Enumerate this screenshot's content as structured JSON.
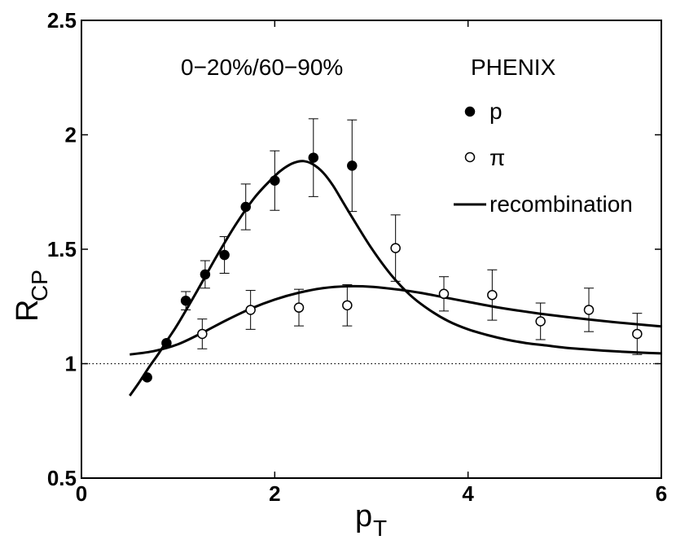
{
  "chart_data": {
    "type": "scatter",
    "title": "",
    "annotation": "0−20%/60−90%",
    "xlabel": {
      "main": "p",
      "sub": "T"
    },
    "ylabel": {
      "main": "R",
      "sub": "CP"
    },
    "xlim": [
      0,
      6
    ],
    "ylim": [
      0.5,
      2.5
    ],
    "xticks": [
      0,
      2,
      4,
      6
    ],
    "xtick_labels": [
      "0",
      "2",
      "4",
      "6"
    ],
    "yticks": [
      0.5,
      1,
      1.5,
      2,
      2.5
    ],
    "ytick_labels": [
      "0.5",
      "1",
      "1.5",
      "2",
      "2.5"
    ],
    "reference_line": {
      "y": 1,
      "style": "dotted"
    },
    "legend": {
      "title": "PHENIX",
      "position": "top-right",
      "entries": [
        {
          "label": "p",
          "marker": "filled-circle"
        },
        {
          "label": "π",
          "marker": "open-circle"
        },
        {
          "label": "recombination",
          "marker": "line"
        }
      ]
    },
    "series": [
      {
        "name": "p",
        "marker": "filled-circle",
        "x": [
          0.68,
          0.88,
          1.08,
          1.28,
          1.48,
          1.7,
          2.0,
          2.4,
          2.8
        ],
        "y": [
          0.94,
          1.09,
          1.275,
          1.39,
          1.475,
          1.685,
          1.8,
          1.9,
          1.865
        ],
        "err": [
          0,
          0,
          0.04,
          0.06,
          0.08,
          0.1,
          0.13,
          0.17,
          0.2
        ]
      },
      {
        "name": "π",
        "marker": "open-circle",
        "x": [
          1.25,
          1.75,
          2.25,
          2.75,
          3.25,
          3.75,
          4.25,
          4.75,
          5.25,
          5.75
        ],
        "y": [
          1.13,
          1.235,
          1.245,
          1.255,
          1.505,
          1.305,
          1.3,
          1.185,
          1.235,
          1.13
        ],
        "err": [
          0.065,
          0.085,
          0.08,
          0.09,
          0.145,
          0.075,
          0.11,
          0.08,
          0.095,
          0.09
        ]
      },
      {
        "name": "recombination (p)",
        "style": "line",
        "x": [
          0.5,
          0.6,
          0.7,
          0.8,
          0.9,
          1.0,
          1.2,
          1.4,
          1.6,
          1.8,
          2.0,
          2.1,
          2.2,
          2.3,
          2.4,
          2.5,
          2.6,
          2.7,
          2.8,
          3.0,
          3.2,
          3.4,
          3.6,
          3.8,
          4.0,
          4.2,
          4.4,
          4.6,
          4.8,
          5.0,
          5.2,
          5.4,
          5.6,
          5.8,
          6.0
        ],
        "y": [
          0.86,
          0.92,
          0.985,
          1.045,
          1.11,
          1.175,
          1.32,
          1.47,
          1.61,
          1.73,
          1.82,
          1.855,
          1.878,
          1.885,
          1.87,
          1.835,
          1.78,
          1.71,
          1.64,
          1.505,
          1.39,
          1.3,
          1.235,
          1.185,
          1.15,
          1.125,
          1.105,
          1.09,
          1.08,
          1.07,
          1.063,
          1.057,
          1.052,
          1.048,
          1.045
        ]
      },
      {
        "name": "recombination (π)",
        "style": "line",
        "x": [
          0.5,
          0.75,
          1.0,
          1.25,
          1.5,
          1.75,
          2.0,
          2.25,
          2.5,
          2.75,
          3.0,
          3.25,
          3.5,
          3.75,
          4.0,
          4.25,
          4.5,
          4.75,
          5.0,
          5.25,
          5.5,
          5.75,
          6.0
        ],
        "y": [
          1.04,
          1.055,
          1.085,
          1.135,
          1.19,
          1.24,
          1.28,
          1.31,
          1.33,
          1.338,
          1.336,
          1.325,
          1.31,
          1.29,
          1.27,
          1.25,
          1.233,
          1.218,
          1.205,
          1.193,
          1.182,
          1.172,
          1.163
        ]
      }
    ]
  }
}
